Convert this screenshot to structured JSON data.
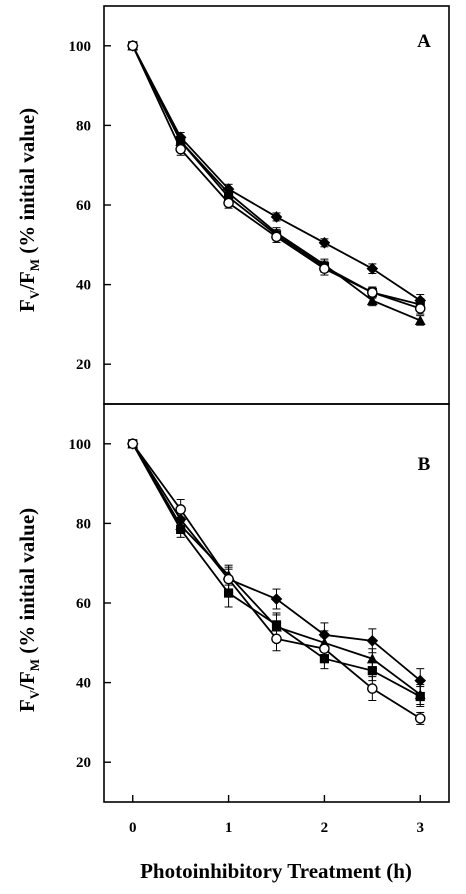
{
  "figure": {
    "xlabel": "Photoinhibitory Treatment (h)",
    "ylabel_parts": [
      "F",
      "V",
      "/F",
      "M",
      " (% initial value)"
    ]
  },
  "chart_data": [
    {
      "type": "line",
      "panel_label": "A",
      "xlabel": "",
      "ylabel": "FV/FM (% initial value)",
      "xlim": [
        -0.3,
        3.3
      ],
      "ylim": [
        10,
        110
      ],
      "yticks": [
        20,
        40,
        60,
        80,
        100
      ],
      "x": [
        0,
        0.5,
        1,
        1.5,
        2,
        2.5,
        3
      ],
      "series": [
        {
          "marker": "diamond-filled",
          "values": [
            100,
            77,
            64,
            57,
            50.5,
            44,
            36
          ],
          "err": [
            0.6,
            1.2,
            1.2,
            1.0,
            1.0,
            1.2,
            1.5
          ]
        },
        {
          "marker": "square-filled",
          "values": [
            100,
            76,
            62,
            52.5,
            44.5,
            38,
            35
          ],
          "err": [
            0.6,
            1.2,
            1.2,
            1.3,
            1.4,
            1.3,
            1.5
          ]
        },
        {
          "marker": "triangle-filled",
          "values": [
            100,
            76,
            63,
            53,
            45,
            36,
            31
          ],
          "err": [
            0.6,
            1.2,
            1.2,
            1.3,
            1.4,
            1.3,
            1.2
          ]
        },
        {
          "marker": "circle-open",
          "values": [
            100,
            74,
            60.5,
            52,
            44,
            38,
            34
          ],
          "err": [
            0.6,
            1.5,
            1.3,
            1.4,
            1.6,
            1.4,
            1.4
          ]
        }
      ]
    },
    {
      "type": "line",
      "panel_label": "B",
      "xlabel": "Photoinhibitory Treatment (h)",
      "ylabel": "FV/FM (% initial value)",
      "xlim": [
        -0.3,
        3.3
      ],
      "ylim": [
        10,
        110
      ],
      "yticks": [
        20,
        40,
        60,
        80,
        100
      ],
      "xticks": [
        0,
        1,
        2,
        3
      ],
      "x": [
        0,
        0.5,
        1,
        1.5,
        2,
        2.5,
        3
      ],
      "series": [
        {
          "marker": "diamond-filled",
          "values": [
            100,
            81,
            66,
            61,
            52,
            50.5,
            40.5
          ],
          "err": [
            0.6,
            2.0,
            2.5,
            2.5,
            3.0,
            3.0,
            3.0
          ]
        },
        {
          "marker": "square-filled",
          "values": [
            100,
            78.5,
            62.5,
            54.5,
            46,
            43,
            36.5
          ],
          "err": [
            0.6,
            2.0,
            3.5,
            3.0,
            2.5,
            2.5,
            2.5
          ]
        },
        {
          "marker": "triangle-filled",
          "values": [
            100,
            79.5,
            67,
            54,
            50,
            46,
            37
          ],
          "err": [
            0.6,
            2.0,
            2.5,
            3.0,
            3.0,
            2.5,
            2.5
          ]
        },
        {
          "marker": "circle-open",
          "values": [
            100,
            83.5,
            66,
            51,
            48.5,
            38.5,
            31
          ],
          "err": [
            0.6,
            2.5,
            3.0,
            3.0,
            3.0,
            3.0,
            1.5
          ]
        }
      ]
    }
  ]
}
